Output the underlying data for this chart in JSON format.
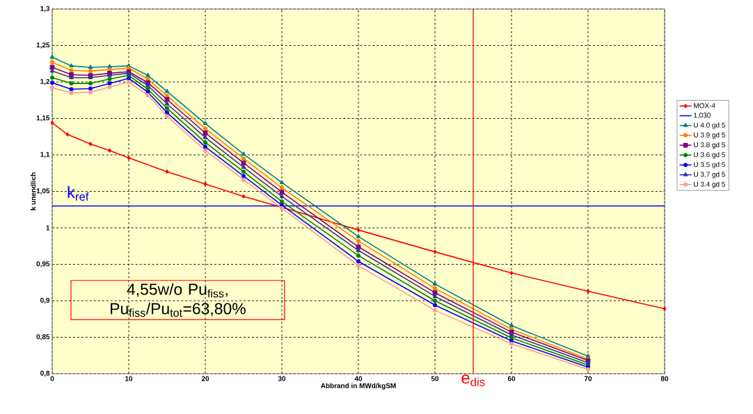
{
  "chart_data": {
    "type": "line",
    "xlabel": "Abbrand in MWd/kgSM",
    "ylabel": "k unendlich",
    "xlim": [
      0,
      80
    ],
    "ylim": [
      0.8,
      1.3
    ],
    "xticks": [
      0,
      10,
      20,
      30,
      40,
      50,
      60,
      70,
      80
    ],
    "yticks": [
      {
        "value": 0.8,
        "label": "0,8"
      },
      {
        "value": 0.85,
        "label": "0,85"
      },
      {
        "value": 0.9,
        "label": "0,9"
      },
      {
        "value": 0.95,
        "label": "0,95"
      },
      {
        "value": 1.0,
        "label": "1"
      },
      {
        "value": 1.05,
        "label": "1,05"
      },
      {
        "value": 1.1,
        "label": "1,1"
      },
      {
        "value": 1.15,
        "label": "1,15"
      },
      {
        "value": 1.2,
        "label": "1,2"
      },
      {
        "value": 1.25,
        "label": "1,25"
      },
      {
        "value": 1.3,
        "label": "1,3"
      }
    ],
    "grid": true,
    "legend": "right",
    "series": [
      {
        "name": "MOX-4",
        "color": "#ff0000",
        "marker": "diamond",
        "x": [
          0,
          2,
          5,
          7.5,
          10,
          15,
          20,
          25,
          30,
          40,
          50,
          60,
          70,
          80
        ],
        "values": [
          1.144,
          1.128,
          1.115,
          1.106,
          1.096,
          1.077,
          1.06,
          1.043,
          1.028,
          0.997,
          0.967,
          0.938,
          0.913,
          0.889
        ]
      },
      {
        "name": "1,030",
        "color": "#0000ff",
        "marker": "none",
        "x": [
          0,
          80
        ],
        "values": [
          1.03,
          1.03
        ]
      },
      {
        "name": "U 4.0 gd 5",
        "color": "#008080",
        "marker": "triangle",
        "x": [
          0,
          2.5,
          5,
          7.5,
          10,
          12.5,
          15,
          20,
          25,
          30,
          40,
          50,
          60,
          70
        ],
        "values": [
          1.234,
          1.222,
          1.22,
          1.221,
          1.222,
          1.209,
          1.187,
          1.143,
          1.101,
          1.062,
          0.988,
          0.923,
          0.866,
          0.824
        ]
      },
      {
        "name": "U 3.9 gd 5",
        "color": "#ff8000",
        "marker": "circle",
        "x": [
          0,
          2.5,
          5,
          7.5,
          10,
          12.5,
          15,
          20,
          25,
          30,
          40,
          50,
          60,
          70
        ],
        "values": [
          1.227,
          1.216,
          1.215,
          1.217,
          1.219,
          1.204,
          1.181,
          1.136,
          1.095,
          1.055,
          0.982,
          0.917,
          0.861,
          0.82
        ]
      },
      {
        "name": "U 3.8 gd 5",
        "color": "#800080",
        "marker": "square",
        "x": [
          0,
          2.5,
          5,
          7.5,
          10,
          12.5,
          15,
          20,
          25,
          30,
          40,
          50,
          60,
          70
        ],
        "values": [
          1.22,
          1.21,
          1.209,
          1.212,
          1.214,
          1.199,
          1.176,
          1.13,
          1.089,
          1.049,
          0.974,
          0.911,
          0.857,
          0.818
        ]
      },
      {
        "name": "U 3.6 gd 5",
        "color": "#008000",
        "marker": "circle",
        "x": [
          0,
          2.5,
          5,
          7.5,
          10,
          12.5,
          15,
          20,
          25,
          30,
          40,
          50,
          60,
          70
        ],
        "values": [
          1.206,
          1.198,
          1.198,
          1.204,
          1.209,
          1.19,
          1.164,
          1.117,
          1.077,
          1.036,
          0.962,
          0.9,
          0.849,
          0.812
        ]
      },
      {
        "name": "U 3.5 gd 5",
        "color": "#0000ff",
        "marker": "circle",
        "x": [
          0,
          2.5,
          5,
          7.5,
          10,
          12.5,
          15,
          20,
          25,
          30,
          40,
          50,
          60,
          70
        ],
        "values": [
          1.199,
          1.19,
          1.191,
          1.198,
          1.205,
          1.186,
          1.158,
          1.111,
          1.071,
          1.031,
          0.954,
          0.894,
          0.845,
          0.809
        ]
      },
      {
        "name": "U 3,7 gd 5",
        "color": "#333399",
        "marker": "triangle",
        "x": [
          0,
          2.5,
          5,
          7.5,
          10,
          12.5,
          15,
          20,
          25,
          30,
          40,
          50,
          60,
          70
        ],
        "values": [
          1.215,
          1.206,
          1.206,
          1.209,
          1.212,
          1.195,
          1.17,
          1.124,
          1.083,
          1.043,
          0.969,
          0.906,
          0.853,
          0.815
        ]
      },
      {
        "name": "U 3.4 gd 5",
        "color": "#ff9999",
        "marker": "circle",
        "x": [
          0,
          2.5,
          5,
          7.5,
          10,
          12.5,
          15,
          20,
          25,
          30,
          40,
          50,
          60,
          70
        ],
        "values": [
          1.192,
          1.185,
          1.186,
          1.193,
          1.2,
          1.182,
          1.153,
          1.106,
          1.066,
          1.027,
          0.948,
          0.887,
          0.841,
          0.806
        ]
      }
    ],
    "ref_lines": [
      {
        "axis": "x",
        "value": 55,
        "label": "e$_{dis}$",
        "color": "#ff0000"
      }
    ],
    "annotations": [
      "k$_{ref}$",
      "4,55w/o Pu$_{fiss}$, Pu$_{fiss}$/Pu$_{tot}$=63,80%"
    ]
  }
}
